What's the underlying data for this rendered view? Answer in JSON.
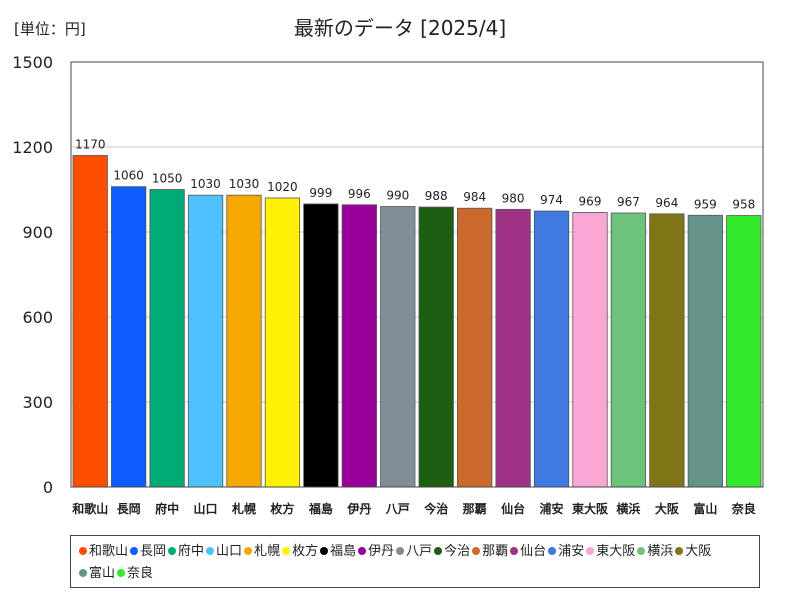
{
  "chart_data": {
    "type": "bar",
    "unit_label": "[単位：円]",
    "title": "最新のデータ [2025/4]",
    "categories": [
      "和歌山",
      "長岡",
      "府中",
      "山口",
      "札幌",
      "枚方",
      "福島",
      "伊丹",
      "八戸",
      "今治",
      "那覇",
      "仙台",
      "浦安",
      "東大阪",
      "横浜",
      "大阪",
      "富山",
      "奈良"
    ],
    "values": [
      1170,
      1060,
      1050,
      1030,
      1030,
      1020,
      999,
      996,
      990,
      988,
      984,
      980,
      974,
      969,
      967,
      964,
      959,
      958
    ],
    "colors": [
      "#ff4d00",
      "#0d5cff",
      "#00ab78",
      "#4fc3ff",
      "#f7a800",
      "#fff200",
      "#000000",
      "#990099",
      "#818e9a",
      "#1e5e13",
      "#cc6a2d",
      "#9e3385",
      "#3f7ae0",
      "#f9a7d4",
      "#6cc37c",
      "#7e7616",
      "#649487",
      "#33ea2c"
    ],
    "ylim": [
      0,
      1500
    ],
    "yticks": [
      0,
      300,
      600,
      900,
      1200,
      1500
    ],
    "grid": true,
    "legend_position": "bottom"
  }
}
